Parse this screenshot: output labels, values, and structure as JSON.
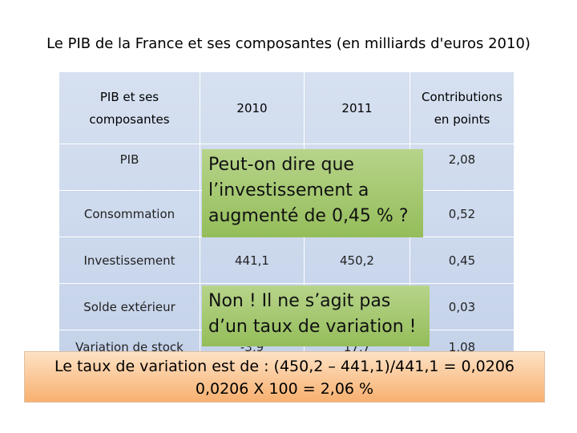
{
  "title": "Le PIB de la France et ses composantes (en milliards d'euros 2010)",
  "table": {
    "header": [
      "PIB et ses composantes",
      "2010",
      "2011",
      "Contributions en points"
    ],
    "rows": [
      {
        "label": "PIB",
        "contribution": "2,08"
      },
      {
        "label": "Consommation",
        "contribution": "0,52"
      },
      {
        "label": "Investissement",
        "v2010": "441,1",
        "v2011": "450,2",
        "contribution": "0,45"
      },
      {
        "label": "Solde extérieur",
        "contribution": "0,03"
      },
      {
        "label": "Variation de stock",
        "v2010": "-3,9",
        "v2011": "17,7",
        "contribution": "1,08"
      }
    ]
  },
  "callouts": [
    {
      "lines": [
        "Peut-on dire que",
        "l’investissement a",
        "augmenté de 0,45 % ?"
      ]
    },
    {
      "lines": [
        "Non ! Il ne s’agit pas",
        "d’un taux de variation !"
      ]
    },
    {
      "lines": [
        "Le taux de variation est de : (450,2 – 441,1)/441,1 = 0,0206",
        "0,0206 X 100 = 2,06 %"
      ]
    }
  ]
}
